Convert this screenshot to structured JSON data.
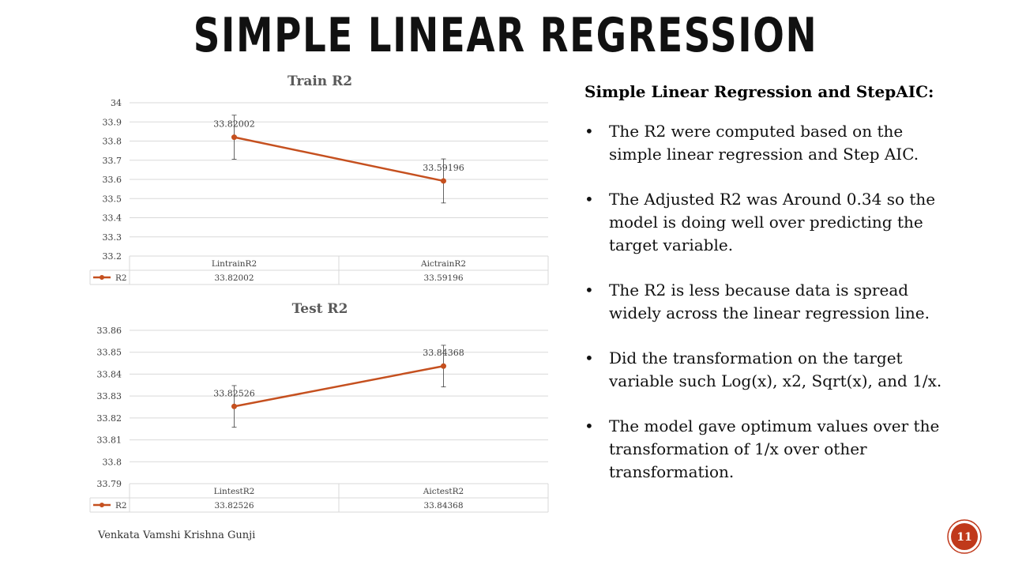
{
  "title": "SIMPLE LINEAR REGRESSION",
  "colors": {
    "series": "#c5501f",
    "grid": "#d9d9d9",
    "badge": "#c0391b"
  },
  "chart_data": [
    {
      "type": "line",
      "title": "Train R2",
      "categories": [
        "LintrainR2",
        "AictrainR2"
      ],
      "series": [
        {
          "name": "R2",
          "values": [
            33.82002,
            33.59196
          ]
        }
      ],
      "data_labels": [
        "33.82002",
        "33.59196"
      ],
      "error_bars": [
        0.115,
        0.115
      ],
      "ylim": [
        33.2,
        34
      ],
      "yticks": [
        "34",
        "33.9",
        "33.8",
        "33.7",
        "33.6",
        "33.5",
        "33.4",
        "33.3",
        "33.2"
      ],
      "data_table": {
        "legend": "R2",
        "cells": [
          "33.82002",
          "33.59196"
        ]
      },
      "grid": true
    },
    {
      "type": "line",
      "title": "Test R2",
      "categories": [
        "LintestR2",
        "AictestR2"
      ],
      "series": [
        {
          "name": "R2",
          "values": [
            33.82526,
            33.84368
          ]
        }
      ],
      "data_labels": [
        "33.82526",
        "33.84368"
      ],
      "error_bars": [
        0.0095,
        0.0095
      ],
      "ylim": [
        33.79,
        33.86
      ],
      "yticks": [
        "33.86",
        "33.85",
        "33.84",
        "33.83",
        "33.82",
        "33.81",
        "33.8",
        "33.79"
      ],
      "data_table": {
        "legend": "R2",
        "cells": [
          "33.82526",
          "33.84368"
        ]
      },
      "grid": true
    }
  ],
  "panel": {
    "heading": "Simple Linear Regression and StepAIC:",
    "bullet_glyph": "•",
    "bullets": [
      {
        "line1": "The R2 were computed based on the",
        "line2": "simple linear regression and Step AIC.",
        "line3": ""
      },
      {
        "line1": "The Adjusted R2 was Around 0.34 so the",
        "line2": "model is doing well over predicting the",
        "line3": "target variable."
      },
      {
        "line1": "The R2 is less because data is spread",
        "line2": "widely across the linear regression line.",
        "line3": ""
      },
      {
        "line1": "Did the transformation on the target",
        "line2": "variable such Log(x), x2, Sqrt(x), and 1/x.",
        "line3": ""
      },
      {
        "line1": "The model gave optimum values over the",
        "line2": "transformation of 1/x over other",
        "line3": "transformation."
      }
    ]
  },
  "footer": {
    "author": "Venkata Vamshi Krishna Gunji",
    "page_number": "11"
  }
}
